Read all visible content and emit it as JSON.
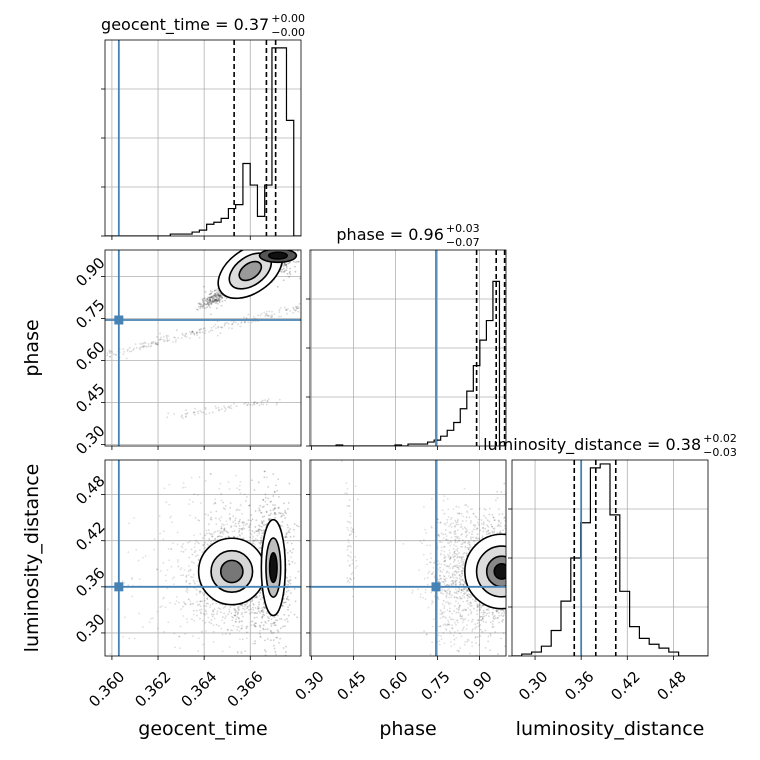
{
  "chart_data": {
    "type": "corner",
    "truth_color": "#4682b4",
    "params": [
      {
        "name": "geocent_time",
        "label": "geocent_time",
        "title_main": "geocent_time = 0.37",
        "title_sup": "+0.00",
        "title_sub": "−0.00",
        "range": [
          0.3597,
          0.3682
        ],
        "ticks": [
          0.36,
          0.362,
          0.364,
          0.366
        ],
        "tick_labels": [
          "0.360",
          "0.362",
          "0.364",
          "0.366"
        ],
        "truth": 0.3603,
        "quantiles": [
          0.3653,
          0.3667,
          0.3671
        ],
        "hist": [
          0,
          0,
          0,
          0,
          0,
          0,
          0,
          0,
          0,
          0.01,
          0.01,
          0.01,
          0.02,
          0.03,
          0.06,
          0.07,
          0.09,
          0.14,
          0.16,
          0.37,
          0.26,
          0.1,
          0.26,
          0.96,
          0.96,
          0.59,
          0
        ]
      },
      {
        "name": "phase",
        "label": "phase",
        "title_main": "phase = 0.96",
        "title_sup": "+0.03",
        "title_sub": "−0.07",
        "range": [
          0.295,
          0.995
        ],
        "ticks": [
          0.3,
          0.45,
          0.6,
          0.75,
          0.9
        ],
        "tick_labels": [
          "0.30",
          "0.45",
          "0.60",
          "0.75",
          "0.90"
        ],
        "truth": 0.745,
        "quantiles": [
          0.89,
          0.96,
          0.99
        ],
        "hist": [
          0,
          0,
          0,
          0,
          0.005,
          0,
          0,
          0,
          0,
          0,
          0,
          0,
          0,
          0.005,
          0,
          0.01,
          0.01,
          0.01,
          0.02,
          0.03,
          0.05,
          0.08,
          0.12,
          0.19,
          0.28,
          0.41,
          0.54,
          0.64,
          0.84,
          0
        ]
      },
      {
        "name": "luminosity_distance",
        "label": "luminosity_distance",
        "title_main": "luminosity_distance = 0.38",
        "title_sup": "+0.02",
        "title_sub": "−0.03",
        "range": [
          0.27,
          0.525
        ],
        "ticks": [
          0.3,
          0.36,
          0.42,
          0.48
        ],
        "tick_labels": [
          "0.30",
          "0.36",
          "0.42",
          "0.48"
        ],
        "truth": 0.36,
        "quantiles": [
          0.351,
          0.379,
          0.405
        ],
        "hist": [
          0,
          0.01,
          0.02,
          0.05,
          0.13,
          0.28,
          0.5,
          0.68,
          0.96,
          0.98,
          0.72,
          0.33,
          0.15,
          0.09,
          0.06,
          0.04,
          0.02,
          0,
          0,
          0
        ]
      }
    ],
    "truth_points": [
      [
        0.3603,
        0.745
      ],
      [
        0.3603,
        0.36
      ],
      [
        0.745,
        0.36
      ]
    ],
    "contour_panels": [
      "geocent_time|phase",
      "geocent_time|luminosity_distance",
      "phase|luminosity_distance"
    ]
  }
}
